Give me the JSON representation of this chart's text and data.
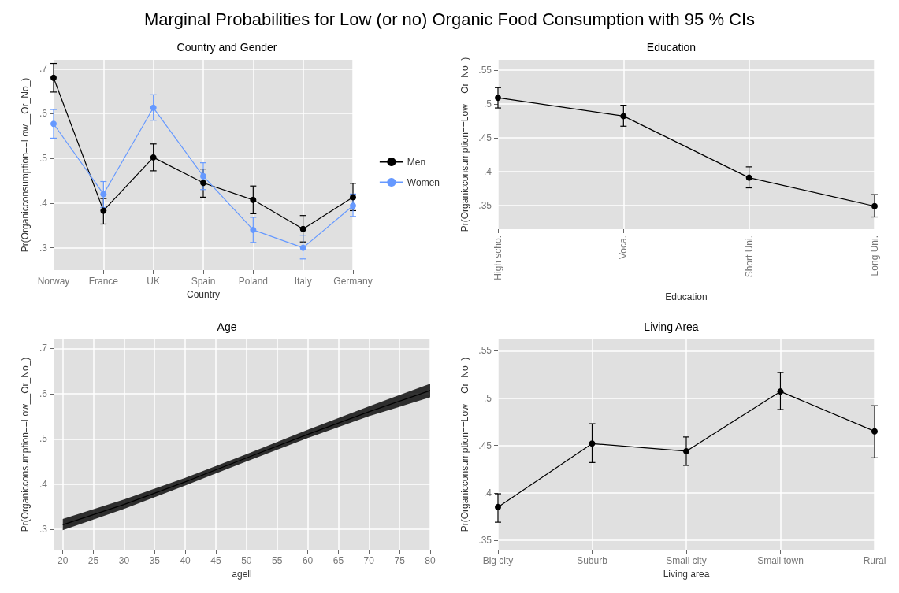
{
  "chart_data": [
    {
      "type": "line",
      "title": "Country and Gender",
      "annotations": [
        "Marginal Probabilities for Low (or no) Organic Food Consumption with 95 % CIs"
      ],
      "xlabel": "Country",
      "ylabel": "Pr(Organicconsumption==Low__Or_No_)",
      "categories": [
        "Norway",
        "France",
        "UK",
        "Spain",
        "Poland",
        "Italy",
        "Germany"
      ],
      "series": [
        {
          "name": "Men",
          "color": "#000000",
          "values": [
            0.68,
            0.383,
            0.502,
            0.445,
            0.407,
            0.342,
            0.413
          ],
          "errors": [
            [
              0.648,
              0.712
            ],
            [
              0.353,
              0.41
            ],
            [
              0.472,
              0.532
            ],
            [
              0.413,
              0.476
            ],
            [
              0.376,
              0.438
            ],
            [
              0.313,
              0.372
            ],
            [
              0.383,
              0.444
            ]
          ]
        },
        {
          "name": "Women",
          "color": "#6699ff",
          "values": [
            0.577,
            0.42,
            0.613,
            0.46,
            0.34,
            0.3,
            0.394
          ],
          "errors": [
            [
              0.545,
              0.609
            ],
            [
              0.39,
              0.448
            ],
            [
              0.585,
              0.642
            ],
            [
              0.43,
              0.49
            ],
            [
              0.312,
              0.368
            ],
            [
              0.275,
              0.328
            ],
            [
              0.37,
              0.42
            ]
          ]
        }
      ],
      "ylim": [
        0.25,
        0.72
      ],
      "yticks": [
        {
          "value": 0.3,
          "label": ".3"
        },
        {
          "value": 0.4,
          "label": ".4"
        },
        {
          "value": 0.5,
          "label": ".5"
        },
        {
          "value": 0.6,
          "label": ".6"
        },
        {
          "value": 0.7,
          "label": ".7"
        }
      ],
      "grid": true,
      "legend": "right",
      "marker": "circle",
      "line_style": "solid"
    },
    {
      "type": "line",
      "title": "Education",
      "xlabel": "Education",
      "ylabel": "Pr(Organicconsumption==Low__Or_No_)",
      "categories": [
        "High scho.",
        "Voca.",
        "Short Uni.",
        "Long Uni."
      ],
      "series": [
        {
          "color": "#000000",
          "values": [
            0.509,
            0.482,
            0.391,
            0.349
          ],
          "errors": [
            [
              0.494,
              0.524
            ],
            [
              0.467,
              0.498
            ],
            [
              0.376,
              0.407
            ],
            [
              0.333,
              0.366
            ]
          ]
        }
      ],
      "ylim": [
        0.315,
        0.565
      ],
      "yticks": [
        {
          "value": 0.35,
          "label": ".35"
        },
        {
          "value": 0.4,
          "label": ".4"
        },
        {
          "value": 0.45,
          "label": ".45"
        },
        {
          "value": 0.5,
          "label": ".5"
        },
        {
          "value": 0.55,
          "label": ".55"
        }
      ],
      "grid": true,
      "marker": "circle",
      "line_style": "solid"
    },
    {
      "type": "line",
      "title": "Age",
      "xlabel": "agell",
      "ylabel": "Pr(Organicconsumption==Low__Or_No_)",
      "x": [
        20,
        30,
        40,
        50,
        60,
        70,
        80
      ],
      "series": [
        {
          "color": "#000000",
          "values": [
            0.31,
            0.355,
            0.405,
            0.458,
            0.51,
            0.56,
            0.607
          ],
          "lower": [
            0.298,
            0.345,
            0.397,
            0.45,
            0.502,
            0.55,
            0.592
          ],
          "upper": [
            0.323,
            0.366,
            0.414,
            0.466,
            0.52,
            0.572,
            0.622
          ]
        }
      ],
      "xlim": [
        18.5,
        80
      ],
      "xticks": [
        20,
        25,
        30,
        35,
        40,
        45,
        50,
        55,
        60,
        65,
        70,
        75,
        80
      ],
      "ylim": [
        0.255,
        0.72
      ],
      "yticks": [
        {
          "value": 0.3,
          "label": ".3"
        },
        {
          "value": 0.4,
          "label": ".4"
        },
        {
          "value": 0.5,
          "label": ".5"
        },
        {
          "value": 0.6,
          "label": ".6"
        },
        {
          "value": 0.7,
          "label": ".7"
        }
      ],
      "grid": true,
      "marker": "none",
      "line_style": "solid"
    },
    {
      "type": "line",
      "title": "Living Area",
      "xlabel": "Living area",
      "ylabel": "Pr(Organicconsumption==Low__Or_No_)",
      "categories": [
        "Big city",
        "Suburb",
        "Small city",
        "Small town",
        "Rural"
      ],
      "series": [
        {
          "color": "#000000",
          "values": [
            0.385,
            0.452,
            0.444,
            0.507,
            0.465
          ],
          "errors": [
            [
              0.369,
              0.399
            ],
            [
              0.432,
              0.473
            ],
            [
              0.429,
              0.459
            ],
            [
              0.488,
              0.527
            ],
            [
              0.437,
              0.492
            ]
          ]
        }
      ],
      "ylim": [
        0.34,
        0.562
      ],
      "yticks": [
        {
          "value": 0.35,
          "label": ".35"
        },
        {
          "value": 0.4,
          "label": ".4"
        },
        {
          "value": 0.45,
          "label": ".45"
        },
        {
          "value": 0.5,
          "label": ".5"
        },
        {
          "value": 0.55,
          "label": ".55"
        }
      ],
      "grid": true,
      "marker": "circle",
      "line_style": "solid"
    }
  ]
}
